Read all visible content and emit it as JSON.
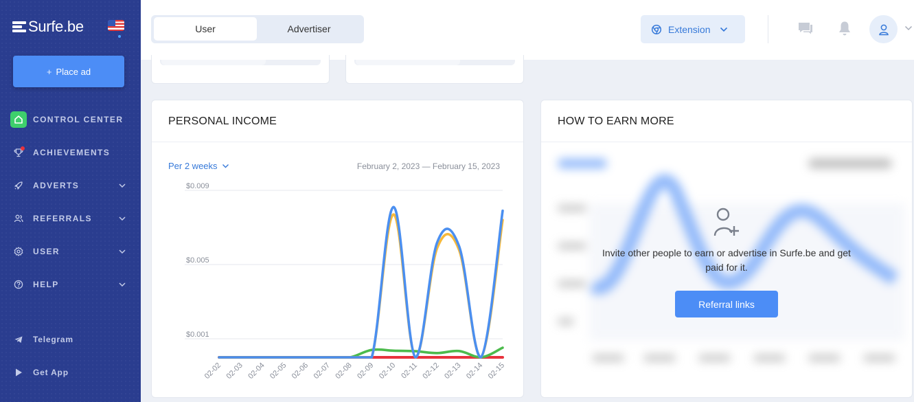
{
  "sidebar": {
    "logo_text": "Surfe.be",
    "place_ad_label": "Place ad",
    "items": [
      {
        "label": "CONTROL CENTER",
        "icon": "home-icon"
      },
      {
        "label": "ACHIEVEMENTS",
        "icon": "trophy-icon"
      },
      {
        "label": "ADVERTS",
        "icon": "rocket-icon"
      },
      {
        "label": "REFERRALS",
        "icon": "users-icon"
      },
      {
        "label": "USER",
        "icon": "gear-icon"
      },
      {
        "label": "HELP",
        "icon": "question-icon"
      }
    ],
    "bottom_items": [
      {
        "label": "Telegram",
        "icon": "telegram-icon"
      },
      {
        "label": "Get App",
        "icon": "play-icon"
      }
    ],
    "colors": {
      "background": "#2a3d8f",
      "active": "#3ecf6c",
      "badge": "#e8333d"
    }
  },
  "topbar": {
    "tabs": [
      {
        "label": "User",
        "active": true
      },
      {
        "label": "Advertiser",
        "active": false
      }
    ],
    "extension_label": "Extension",
    "accent": "#3679d9"
  },
  "income": {
    "title": "PERSONAL INCOME",
    "period": "Per 2 weeks",
    "date_range": "February 2, 2023 — February 15, 2023"
  },
  "chart_data": {
    "type": "line",
    "categories": [
      "02-02",
      "02-03",
      "02-04",
      "02-05",
      "02-06",
      "02-07",
      "02-08",
      "02-09",
      "02-10",
      "02-11",
      "02-12",
      "02-13",
      "02-14",
      "02-15"
    ],
    "y_ticks": [
      "$0.009",
      "$0.005",
      "$0.001"
    ],
    "y_tick_values": [
      0.009,
      0.005,
      0.001
    ],
    "ylim": [
      0,
      0.009
    ],
    "grid": true,
    "series": [
      {
        "color": "#4b8ff0",
        "values": [
          0,
          0,
          0,
          0,
          0,
          0,
          0,
          0,
          0.0081,
          0,
          0.0062,
          0.006,
          0,
          0.0079
        ]
      },
      {
        "color": "#f6b93b",
        "values": [
          0,
          0,
          0,
          0,
          0,
          0,
          0,
          0,
          0.0077,
          0,
          0.0059,
          0.0058,
          0,
          0.0074
        ]
      },
      {
        "color": "#4cbb4c",
        "values": [
          0,
          0,
          0,
          0,
          0,
          0,
          0,
          0.0004,
          0.00036,
          0.00033,
          0.00023,
          0.00034,
          0,
          0.00052
        ]
      },
      {
        "color": "#e8333d",
        "values": [
          0,
          0,
          0,
          0,
          0,
          0,
          0,
          0,
          0,
          0,
          0,
          0,
          0,
          0
        ]
      }
    ]
  },
  "earn": {
    "title": "HOW TO EARN MORE",
    "text": "Invite other people to earn or advertise in Surfe.be and get paid for it.",
    "button_label": "Referral links"
  }
}
